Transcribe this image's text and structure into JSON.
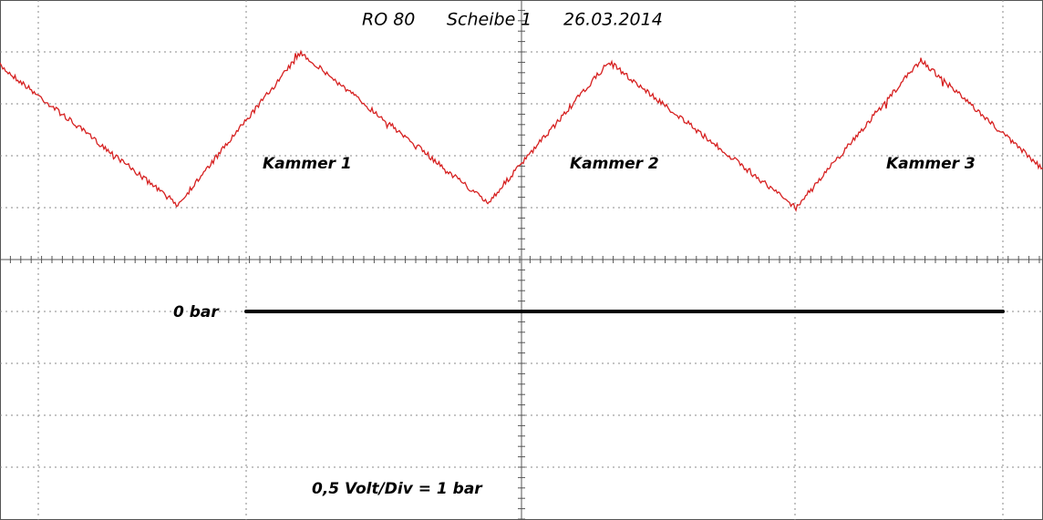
{
  "title": {
    "parts": [
      "RO 80",
      "Scheibe 1",
      "26.03.2014"
    ]
  },
  "labels": {
    "chambers": [
      "Kammer 1",
      "Kammer 2",
      "Kammer 3"
    ],
    "zero": "0 bar",
    "scale": "0,5 Volt/Div = 1 bar"
  }
}
